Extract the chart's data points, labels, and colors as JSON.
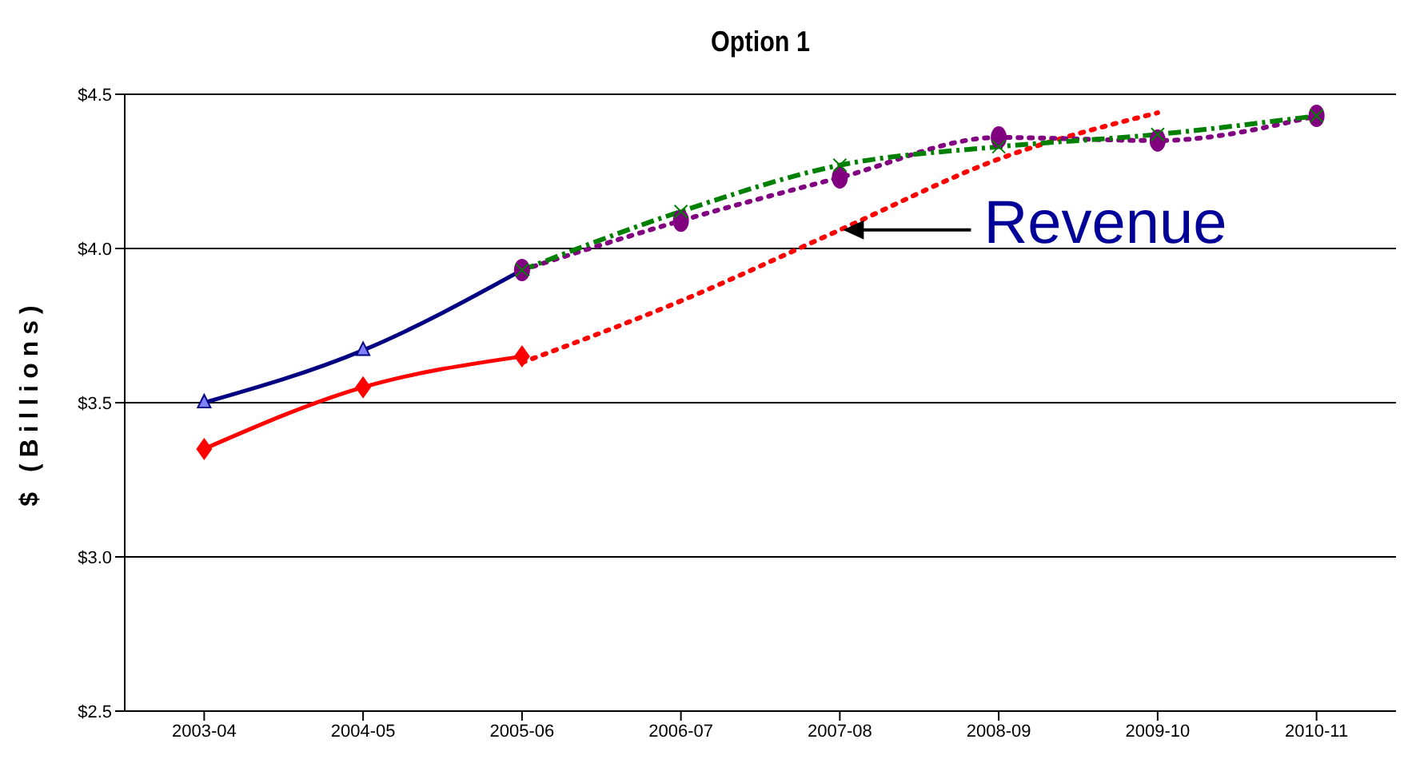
{
  "chart_data": {
    "type": "line",
    "title": "Option 1",
    "ylabel": "$ (Billions)",
    "categories": [
      "2003-04",
      "2004-05",
      "2005-06",
      "2006-07",
      "2007-08",
      "2008-09",
      "2009-10",
      "2010-11"
    ],
    "series": [
      {
        "color": "#000080",
        "values": [
          3.5,
          3.67,
          3.93,
          null,
          null,
          null,
          null,
          null
        ],
        "marker": "triangle",
        "line_style": "solid"
      },
      {
        "color": "#ff0000",
        "values": [
          3.35,
          3.55,
          3.65,
          null,
          null,
          null,
          null,
          null
        ],
        "marker": "diamond",
        "line_style": "solid"
      },
      {
        "color": "#ff0000",
        "values": [
          null,
          null,
          3.63,
          3.83,
          4.06,
          4.29,
          4.44,
          null
        ],
        "marker": "none",
        "line_style": "dotted"
      },
      {
        "color": "#800080",
        "values": [
          null,
          null,
          3.93,
          4.09,
          4.23,
          4.36,
          4.35,
          4.43
        ],
        "marker": "circle",
        "line_style": "dotted"
      },
      {
        "color": "#008000",
        "values": [
          null,
          null,
          3.93,
          4.12,
          4.27,
          4.33,
          4.37,
          4.43
        ],
        "marker": "cross",
        "line_style": "dashed"
      }
    ],
    "ylim": [
      2.5,
      4.5
    ],
    "yticks": [
      {
        "value": 2.5,
        "label": "$2.5"
      },
      {
        "value": 3,
        "label": "$3.0"
      },
      {
        "value": 3.5,
        "label": "$3.5"
      },
      {
        "value": 4,
        "label": "$4.0"
      },
      {
        "value": 4.5,
        "label": "$4.5"
      }
    ],
    "grid": "y",
    "annotations": [
      {
        "text": "Revenue",
        "x": "2007-08",
        "y": 4.06
      }
    ]
  }
}
